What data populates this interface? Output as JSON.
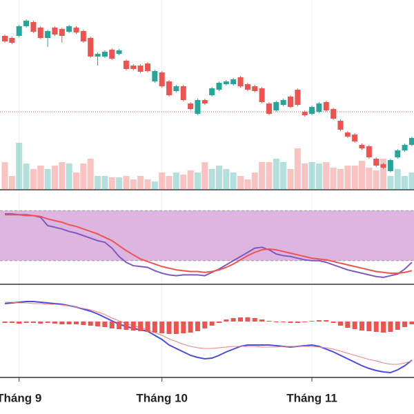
{
  "chart_data": [
    {
      "type": "candlestick",
      "ylim": [
        25,
        300
      ],
      "volume_ylim": [
        0,
        275
      ],
      "price_line": 138,
      "up_color": "#26a69a",
      "down_color": "#ef5350",
      "open": [
        248,
        245,
        248,
        262,
        268,
        260,
        245,
        260,
        258,
        254,
        260,
        255,
        245,
        218,
        218,
        228,
        222,
        212,
        205,
        205,
        208,
        182,
        195,
        182,
        168,
        175,
        150,
        135,
        155,
        162,
        170,
        178,
        178,
        188,
        178,
        175,
        172,
        150,
        140,
        148,
        160,
        170,
        138,
        135,
        138,
        152,
        142,
        125,
        108,
        105,
        90,
        88,
        70,
        62,
        52,
        72,
        82,
        90
      ],
      "high": [
        250,
        247,
        264,
        272,
        270,
        262,
        257,
        262,
        260,
        264,
        262,
        257,
        247,
        224,
        227,
        230,
        229,
        214,
        207,
        207,
        210,
        199,
        197,
        184,
        177,
        177,
        152,
        157,
        157,
        174,
        182,
        184,
        187,
        190,
        180,
        177,
        174,
        152,
        154,
        157,
        162,
        172,
        140,
        147,
        152,
        154,
        144,
        127,
        110,
        107,
        92,
        90,
        72,
        64,
        70,
        84,
        92,
        102
      ],
      "low": [
        238,
        236,
        246,
        260,
        252,
        243,
        232,
        248,
        238,
        252,
        251,
        238,
        216,
        205,
        216,
        213,
        220,
        198,
        198,
        194,
        195,
        180,
        173,
        160,
        166,
        153,
        140,
        133,
        148,
        160,
        168,
        176,
        176,
        173,
        168,
        166,
        150,
        133,
        138,
        146,
        143,
        146,
        131,
        133,
        136,
        138,
        126,
        110,
        100,
        93,
        83,
        70,
        58,
        55,
        50,
        70,
        80,
        88
      ],
      "close": [
        240,
        238,
        262,
        270,
        254,
        245,
        255,
        250,
        248,
        262,
        253,
        240,
        218,
        222,
        225,
        215,
        227,
        200,
        200,
        196,
        197,
        197,
        175,
        162,
        175,
        155,
        142,
        155,
        150,
        172,
        180,
        182,
        185,
        175,
        170,
        168,
        152,
        135,
        152,
        155,
        145,
        148,
        133,
        145,
        150,
        140,
        128,
        112,
        102,
        95,
        85,
        72,
        60,
        57,
        68,
        82,
        90,
        100
      ],
      "volume": [
        40,
        20,
        68,
        38,
        30,
        35,
        30,
        35,
        40,
        38,
        25,
        38,
        45,
        20,
        20,
        18,
        18,
        20,
        15,
        20,
        15,
        12,
        25,
        20,
        25,
        22,
        28,
        25,
        40,
        30,
        35,
        30,
        25,
        20,
        15,
        25,
        40,
        40,
        45,
        40,
        30,
        60,
        38,
        40,
        38,
        40,
        32,
        30,
        35,
        35,
        42,
        32,
        28,
        45,
        20,
        30,
        20,
        25
      ]
    },
    {
      "type": "line",
      "ylim": [
        0,
        100
      ],
      "bands": [
        20,
        80
      ],
      "band_color": "#dcb6e0",
      "series": [
        {
          "color": "#7e57c2",
          "values": [
            76,
            76,
            75,
            75,
            74,
            72,
            62,
            60,
            58,
            55,
            53,
            50,
            47,
            44,
            42,
            35,
            25,
            18,
            14,
            13,
            12,
            8,
            5,
            3,
            2,
            3,
            3,
            3,
            2,
            6,
            10,
            15,
            20,
            25,
            30,
            35,
            36,
            33,
            28,
            26,
            25,
            23,
            21,
            20,
            20,
            18,
            15,
            12,
            9,
            7,
            5,
            3,
            1,
            0,
            2,
            4,
            10,
            18
          ]
        },
        {
          "color": "#ef5350",
          "values": [
            75,
            75,
            75,
            74,
            74,
            73,
            70,
            68,
            66,
            63,
            61,
            58,
            55,
            52,
            48,
            44,
            38,
            32,
            27,
            22,
            19,
            16,
            13,
            11,
            9,
            8,
            7,
            7,
            6,
            7,
            9,
            12,
            16,
            21,
            26,
            30,
            33,
            34,
            33,
            31,
            29,
            27,
            25,
            23,
            22,
            21,
            19,
            17,
            15,
            13,
            11,
            9,
            7,
            6,
            5,
            5,
            6,
            8
          ]
        }
      ]
    },
    {
      "type": "macd",
      "ylim": [
        -3.95,
        2.7
      ],
      "xticks": [
        {
          "value": 2,
          "label": "Tháng 9"
        },
        {
          "value": 22,
          "label": "Tháng 10"
        },
        {
          "value": 43,
          "label": "Tháng 11"
        }
      ],
      "series": [
        {
          "kind": "line",
          "color": "#4a4ae0",
          "values": [
            1.3,
            1.35,
            1.4,
            1.45,
            1.45,
            1.4,
            1.35,
            1.3,
            1.25,
            1.15,
            1.05,
            0.9,
            0.75,
            0.55,
            0.3,
            0.05,
            -0.2,
            -0.35,
            -0.5,
            -0.6,
            -0.7,
            -1,
            -1.3,
            -1.7,
            -1.95,
            -2.2,
            -2.45,
            -2.6,
            -2.7,
            -2.65,
            -2.45,
            -2.2,
            -2,
            -1.8,
            -1.7,
            -1.7,
            -1.7,
            -1.7,
            -1.75,
            -1.8,
            -1.85,
            -1.8,
            -1.75,
            -1.7,
            -1.8,
            -2,
            -2.2,
            -2.45,
            -2.7,
            -2.95,
            -3.2,
            -3.4,
            -3.55,
            -3.65,
            -3.7,
            -3.5,
            -3.2,
            -2.8
          ]
        },
        {
          "kind": "line",
          "color": "#f08080",
          "values": [
            1.4,
            1.4,
            1.35,
            1.35,
            1.3,
            1.3,
            1.25,
            1.25,
            1.2,
            1.15,
            1.05,
            0.95,
            0.85,
            0.7,
            0.5,
            0.25,
            0.05,
            -0.15,
            -0.3,
            -0.45,
            -0.6,
            -0.8,
            -1,
            -1.25,
            -1.45,
            -1.65,
            -1.8,
            -1.9,
            -1.95,
            -1.95,
            -1.9,
            -1.85,
            -1.8,
            -1.8,
            -1.8,
            -1.8,
            -1.85,
            -1.85,
            -1.85,
            -1.8,
            -1.8,
            -1.8,
            -1.8,
            -1.8,
            -1.85,
            -1.9,
            -2,
            -2.15,
            -2.3,
            -2.45,
            -2.6,
            -2.75,
            -2.85,
            -3,
            -3.1,
            -3.1,
            -3,
            -2.85
          ]
        },
        {
          "kind": "bar",
          "color": "#ef5350",
          "values": [
            -0.1,
            -0.1,
            -0.15,
            -0.1,
            -0.1,
            -0.15,
            -0.1,
            -0.15,
            -0.2,
            -0.2,
            -0.2,
            -0.25,
            -0.3,
            -0.35,
            -0.4,
            -0.5,
            -0.55,
            -0.6,
            -0.65,
            -0.7,
            -0.75,
            -0.8,
            -0.85,
            -0.9,
            -0.9,
            -0.85,
            -0.8,
            -0.7,
            -0.5,
            -0.3,
            -0.1,
            0.15,
            0.25,
            0.3,
            0.3,
            0.25,
            0.15,
            0.05,
            0,
            0,
            -0.1,
            -0.1,
            -0.05,
            0.05,
            0.1,
            0.1,
            -0.1,
            -0.3,
            -0.45,
            -0.55,
            -0.65,
            -0.7,
            -0.75,
            -0.8,
            -0.75,
            -0.6,
            -0.4,
            -0.2
          ]
        }
      ]
    }
  ]
}
